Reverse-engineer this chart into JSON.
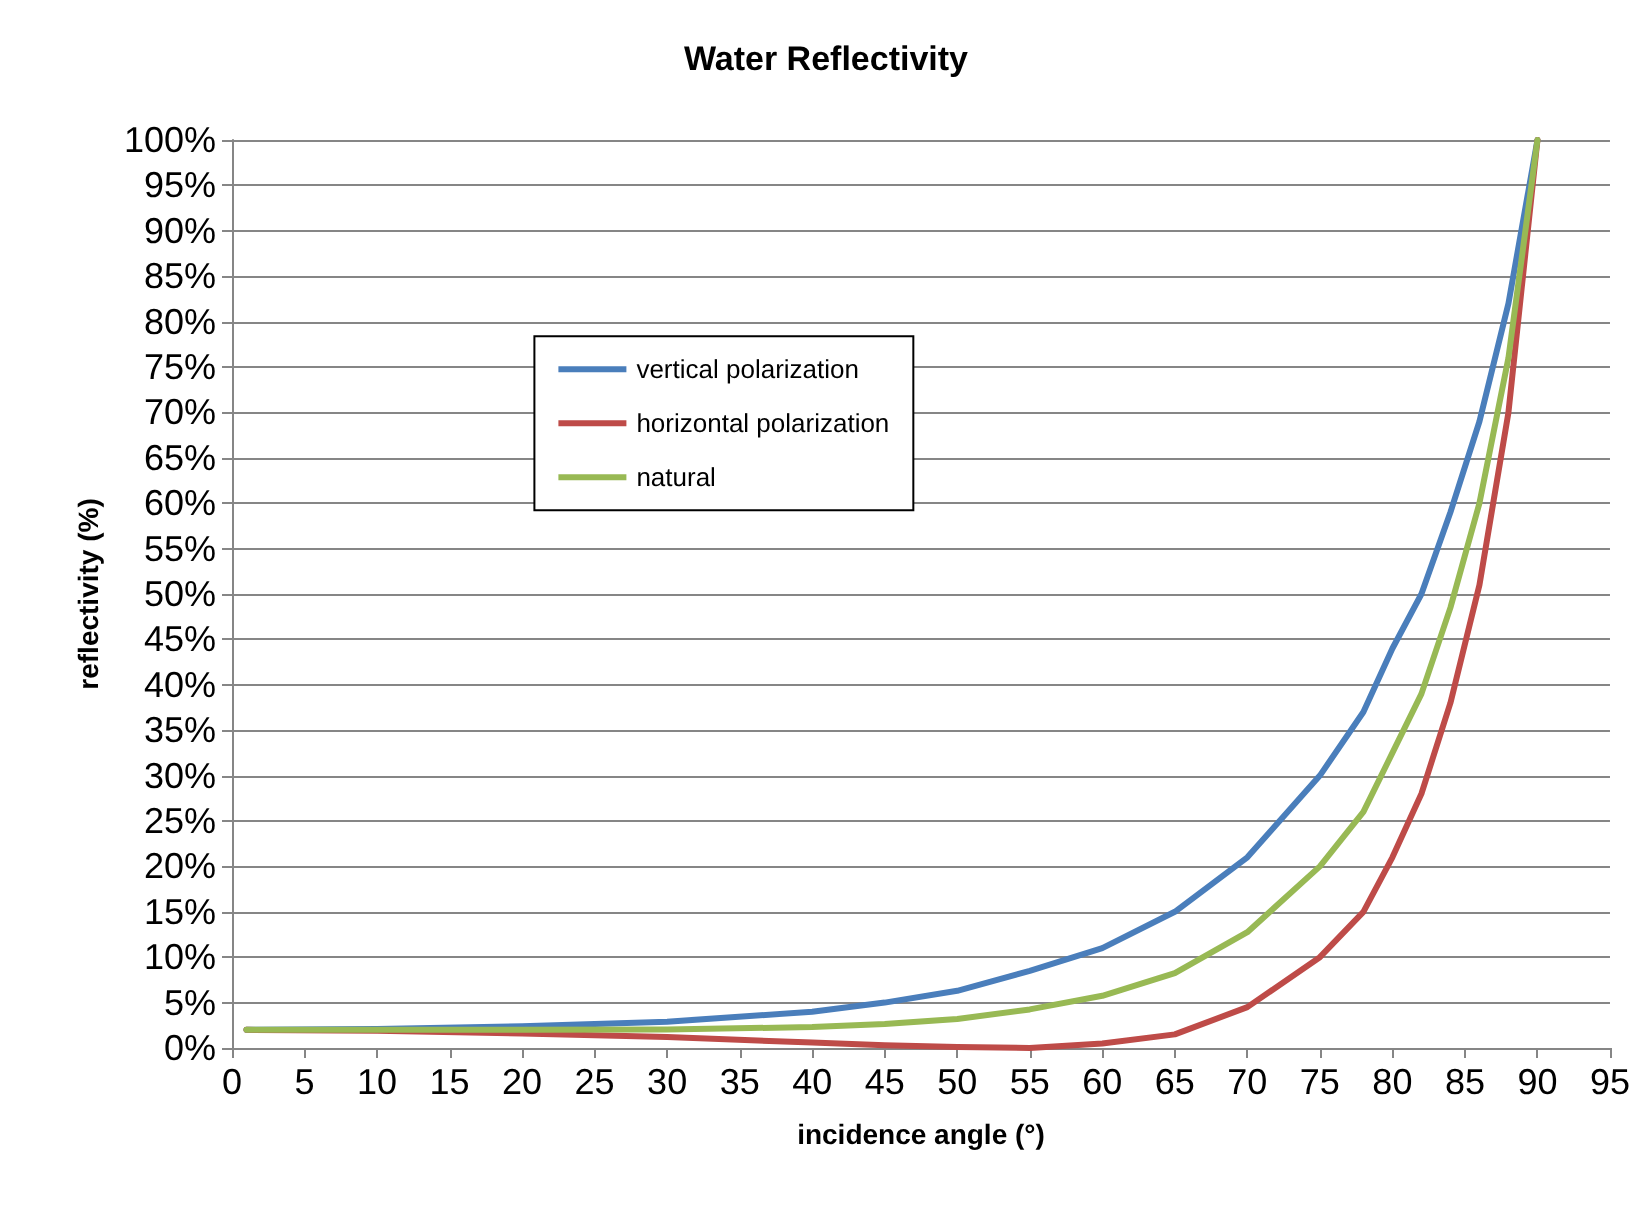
{
  "chart_data": {
    "type": "line",
    "title": "Water Reflectivity",
    "xlabel": "incidence angle (°)",
    "ylabel": "reflectivity (%)",
    "x": [
      1,
      10,
      20,
      30,
      40,
      45,
      50,
      55,
      60,
      65,
      70,
      75,
      78,
      80,
      82,
      84,
      86,
      88,
      90
    ],
    "series": [
      {
        "name": "vertical polarization",
        "color": "#4a7ebb",
        "values": [
          2,
          2.1,
          2.4,
          2.9,
          4,
          5,
          6.3,
          8.5,
          11,
          15,
          21,
          30,
          37,
          44,
          50,
          59,
          69,
          82,
          100
        ]
      },
      {
        "name": "horizontal polarization",
        "color": "#be4b48",
        "values": [
          2,
          1.9,
          1.6,
          1.2,
          0.6,
          0.3,
          0.1,
          0,
          0.5,
          1.5,
          4.5,
          10,
          15,
          21,
          28,
          38,
          51,
          70,
          100
        ]
      },
      {
        "name": "natural",
        "color": "#98b954",
        "values": [
          2,
          2,
          2,
          2.05,
          2.3,
          2.65,
          3.2,
          4.25,
          5.75,
          8.25,
          12.75,
          20,
          26,
          32.5,
          39,
          48.5,
          60,
          76,
          100
        ]
      }
    ],
    "xlim": [
      0,
      95
    ],
    "xticks": [
      0,
      5,
      10,
      15,
      20,
      25,
      30,
      35,
      40,
      45,
      50,
      55,
      60,
      65,
      70,
      75,
      80,
      85,
      90,
      95
    ],
    "ylim": [
      0,
      100
    ],
    "yticks": [
      {
        "value": 0,
        "label": "0%"
      },
      {
        "value": 5,
        "label": "5%"
      },
      {
        "value": 10,
        "label": "10%"
      },
      {
        "value": 15,
        "label": "15%"
      },
      {
        "value": 20,
        "label": "20%"
      },
      {
        "value": 25,
        "label": "25%"
      },
      {
        "value": 30,
        "label": "30%"
      },
      {
        "value": 35,
        "label": "35%"
      },
      {
        "value": 40,
        "label": "40%"
      },
      {
        "value": 45,
        "label": "45%"
      },
      {
        "value": 50,
        "label": "50%"
      },
      {
        "value": 55,
        "label": "55%"
      },
      {
        "value": 60,
        "label": "60%"
      },
      {
        "value": 65,
        "label": "65%"
      },
      {
        "value": 70,
        "label": "70%"
      },
      {
        "value": 75,
        "label": "75%"
      },
      {
        "value": 80,
        "label": "80%"
      },
      {
        "value": 85,
        "label": "85%"
      },
      {
        "value": 90,
        "label": "90%"
      },
      {
        "value": 95,
        "label": "95%"
      },
      {
        "value": 100,
        "label": "100%"
      }
    ],
    "grid": "y",
    "legend": "left",
    "marker": "none",
    "line_style": "solid"
  }
}
